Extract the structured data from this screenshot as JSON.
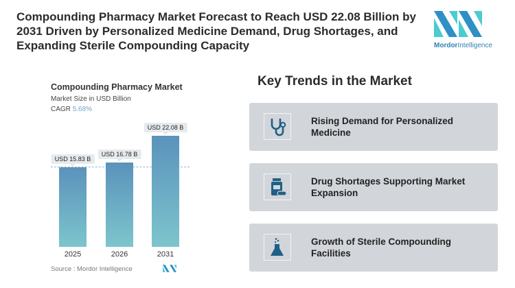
{
  "title": "Compounding Pharmacy Market Forecast to Reach USD 22.08 Billion by 2031 Driven by Personalized Medicine Demand, Drug Shortages, and Expanding Sterile Compounding Capacity",
  "logo": {
    "brand": "Mordor",
    "suffix": "Intelligence"
  },
  "chart_data": {
    "type": "bar",
    "title": "Compounding Pharmacy Market",
    "subtitle": "Market Size in USD Billion",
    "cagr_label": "CAGR",
    "cagr_value": "5.68%",
    "categories": [
      "2025",
      "2026",
      "2031"
    ],
    "values": [
      15.83,
      16.78,
      22.08
    ],
    "data_labels": [
      "USD 15.83 B",
      "USD 16.78 B",
      "USD 22.08 B"
    ],
    "ylim": [
      0,
      22.08
    ],
    "grid": false,
    "colors": {
      "top": "#5b92bb",
      "bottom": "#7dc5cd"
    }
  },
  "source": "Source :  Mordor Intelligence",
  "trends": {
    "title": "Key Trends in the Market",
    "items": [
      {
        "label": "Rising Demand for Personalized Medicine",
        "icon": "stethoscope-icon"
      },
      {
        "label": "Drug Shortages Supporting Market Expansion",
        "icon": "medicine-bottle-icon"
      },
      {
        "label": "Growth of Sterile Compounding Facilities",
        "icon": "flask-icon"
      }
    ],
    "icon_color": "#1f5f86"
  }
}
